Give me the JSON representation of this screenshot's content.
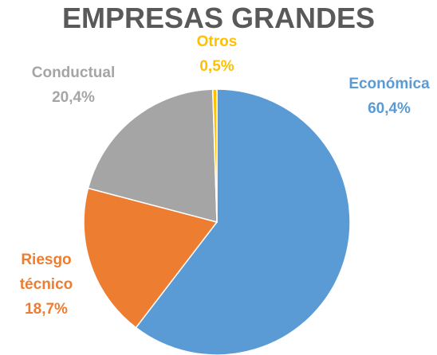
{
  "chart_data": {
    "type": "pie",
    "title": "EMPRESAS GRANDES",
    "categories": [
      "Económica",
      "Riesgo técnico",
      "Conductual",
      "Otros"
    ],
    "values": [
      60.4,
      18.7,
      20.4,
      0.5
    ],
    "value_labels": [
      "60,4%",
      "18,7%",
      "20,4%",
      "0,5%"
    ],
    "colors": [
      "#5b9bd5",
      "#ed7d31",
      "#a5a5a5",
      "#ffc000"
    ]
  }
}
